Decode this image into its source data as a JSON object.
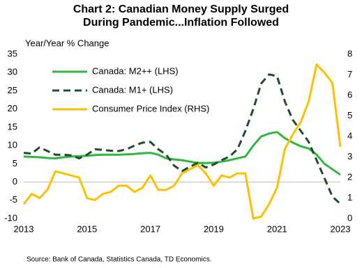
{
  "chart_data": {
    "type": "line",
    "title": "Chart 2: Canadian Money Supply Surged During Pandemic...Inflation Followed",
    "y_label": "Year/Year % Change",
    "source": "Source: Bank of Canada, Statistics Canada, TD Economics.",
    "x": [
      2013,
      2013.25,
      2013.5,
      2013.75,
      2014,
      2014.25,
      2014.5,
      2014.75,
      2015,
      2015.25,
      2015.5,
      2015.75,
      2016,
      2016.25,
      2016.5,
      2016.75,
      2017,
      2017.25,
      2017.5,
      2017.75,
      2018,
      2018.25,
      2018.5,
      2018.75,
      2019,
      2019.25,
      2019.5,
      2019.75,
      2020,
      2020.25,
      2020.5,
      2020.75,
      2021,
      2021.25,
      2021.5,
      2021.75,
      2022,
      2022.25,
      2022.5,
      2022.75,
      2023
    ],
    "xlim": [
      2013,
      2023
    ],
    "xticks": [
      2013,
      2015,
      2017,
      2019,
      2021,
      2023
    ],
    "ylim": [
      -10,
      35
    ],
    "yticks": [
      -10,
      -5,
      0,
      5,
      10,
      15,
      20,
      25,
      30,
      35
    ],
    "y2lim": [
      0,
      8
    ],
    "y2ticks": [
      0,
      1,
      2,
      3,
      4,
      5,
      6,
      7,
      8
    ],
    "series": [
      {
        "name": "Canada: M2++ (LHS)",
        "color": "#2db83d",
        "dash": false,
        "values": [
          7,
          6.9,
          6.8,
          6.6,
          6.5,
          6.8,
          7,
          7.1,
          7.2,
          7.4,
          7.5,
          7.5,
          7.5,
          7.6,
          7.7,
          7.9,
          8,
          7.5,
          6.5,
          6.2,
          6,
          5.6,
          5.2,
          5.2,
          5.3,
          5.6,
          6,
          6.5,
          7,
          10,
          12.5,
          13.3,
          13.7,
          12,
          10.8,
          9.8,
          9.2,
          7.5,
          5,
          3.5,
          2
        ]
      },
      {
        "name": "Canada: M1+ (LHS)",
        "color": "#1e4d2b",
        "dash": true,
        "values": [
          8,
          7.8,
          9.5,
          8.5,
          7.5,
          7.5,
          7.3,
          6.5,
          7.5,
          9,
          8.8,
          8.6,
          8.5,
          9,
          10,
          10.8,
          11,
          9,
          7.5,
          4.5,
          3,
          4.2,
          5.3,
          4,
          4.8,
          6,
          7,
          9,
          14,
          20,
          27,
          29.5,
          29,
          22,
          17,
          14,
          11,
          6,
          1,
          -4,
          -6
        ]
      },
      {
        "name": "Consumer Price Index  (RHS)",
        "color": "#ffc000",
        "dash": false,
        "axis": "y2",
        "values": [
          0.7,
          1.2,
          1,
          1.4,
          2.3,
          2.2,
          2.1,
          2,
          1,
          0.9,
          1.2,
          1.3,
          1.6,
          1.6,
          1.3,
          1.5,
          2.1,
          1.4,
          1.4,
          1.6,
          2.2,
          2.4,
          2.6,
          2.2,
          1.6,
          2.1,
          2,
          2.2,
          2.2,
          0,
          0.1,
          0.7,
          1.5,
          3.4,
          4.1,
          4.7,
          5.7,
          7.5,
          7.1,
          6.6,
          3.5
        ]
      }
    ]
  }
}
